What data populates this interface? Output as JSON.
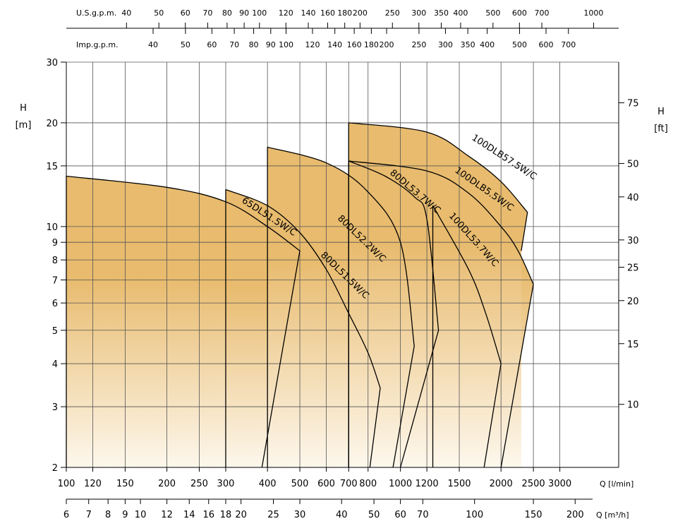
{
  "chart_data": {
    "type": "line",
    "title": "",
    "xlabel": "Q [l/min]",
    "xlabel_m3h": "Q [m³/h]",
    "ylabel_left": "H",
    "ylabel_left_unit": "[m]",
    "ylabel_right": "H",
    "ylabel_right_unit": "[ft]",
    "x_scale": "log",
    "y_scale": "log",
    "xlim_lpm": [
      100,
      4500
    ],
    "ylim_m": [
      2,
      30
    ],
    "x_ticks_lpm": [
      100,
      120,
      150,
      200,
      250,
      300,
      400,
      500,
      600,
      700,
      800,
      1000,
      1200,
      1500,
      2000,
      2500,
      3000
    ],
    "x_ticks_lpm_labels": [
      "100",
      "120",
      "150",
      "200",
      "250",
      "300",
      "400",
      "500",
      "600",
      "700",
      "800",
      "1000",
      "1200",
      "1500",
      "2000",
      "2500",
      "3000"
    ],
    "x_ticks_m3h": [
      6,
      7,
      8,
      9,
      10,
      12,
      14,
      16,
      18,
      20,
      25,
      30,
      40,
      50,
      60,
      70,
      100,
      150,
      200
    ],
    "x_ticks_m3h_labels": [
      "6",
      "7",
      "8",
      "9",
      "10",
      "12",
      "14",
      "16",
      "18",
      "20",
      "25",
      "30",
      "40",
      "50",
      "60",
      "70",
      "100",
      "150",
      "200"
    ],
    "us_gpm_label": "U.S.g.p.m.",
    "us_gpm_ticks": [
      40,
      50,
      60,
      70,
      80,
      90,
      100,
      120,
      140,
      160,
      180,
      200,
      250,
      300,
      350,
      400,
      500,
      600,
      700,
      1000
    ],
    "us_gpm_tick_labels": [
      "40",
      "50",
      "60",
      "70",
      "80",
      "90",
      "100",
      "120",
      "140",
      "160",
      "180",
      "200",
      "250",
      "300",
      "350",
      "400",
      "500",
      "600",
      "700",
      "1000"
    ],
    "imp_gpm_label": "Imp.g.p.m.",
    "imp_gpm_ticks": [
      40,
      50,
      60,
      70,
      80,
      90,
      100,
      120,
      140,
      160,
      180,
      200,
      250,
      300,
      350,
      400,
      500,
      600,
      700
    ],
    "imp_gpm_tick_labels": [
      "40",
      "50",
      "60",
      "70",
      "80",
      "90",
      "100",
      "120",
      "140",
      "160",
      "180",
      "200",
      "250",
      "300",
      "350",
      "400",
      "500",
      "600",
      "700"
    ],
    "y_ticks_m": [
      2,
      3,
      4,
      5,
      6,
      7,
      8,
      9,
      10,
      15,
      20,
      30
    ],
    "y_ticks_m_labels": [
      "2",
      "3",
      "4",
      "5",
      "6",
      "7",
      "8",
      "9",
      "10",
      "15",
      "20",
      "30"
    ],
    "y_ticks_ft": [
      10,
      15,
      20,
      25,
      30,
      40,
      50,
      75
    ],
    "y_ticks_ft_labels": [
      "10",
      "15",
      "20",
      "25",
      "30",
      "40",
      "50",
      "75"
    ],
    "grid": true,
    "fill_gradient": [
      "#e8bb6e",
      "#fdf7ec"
    ],
    "series": [
      {
        "name": "65DL51.5W/C",
        "points": [
          [
            100,
            14.0
          ],
          [
            200,
            13.0
          ],
          [
            300,
            11.8
          ],
          [
            400,
            10.0
          ],
          [
            500,
            8.5
          ]
        ],
        "end_to": [
          385,
          2
        ]
      },
      {
        "name": "80DL51.5W/C",
        "points": [
          [
            300,
            12.8
          ],
          [
            400,
            11.5
          ],
          [
            500,
            9.6
          ],
          [
            600,
            7.5
          ],
          [
            700,
            5.6
          ],
          [
            800,
            4.3
          ],
          [
            870,
            3.4
          ]
        ],
        "end_to": [
          810,
          2
        ]
      },
      {
        "name": "80DL52.2W/C",
        "points": [
          [
            400,
            17.0
          ],
          [
            600,
            15.3
          ],
          [
            800,
            12.6
          ],
          [
            1000,
            9.0
          ],
          [
            1100,
            4.5
          ]
        ],
        "end_to": [
          950,
          2
        ]
      },
      {
        "name": "80DL53.7W/C",
        "points": [
          [
            700,
            15.5
          ],
          [
            900,
            14.0
          ],
          [
            1100,
            12.2
          ],
          [
            1200,
            10.5
          ],
          [
            1300,
            5.0
          ]
        ],
        "end_to": [
          1000,
          2
        ]
      },
      {
        "name": "100DL53.7W/C",
        "points": [
          [
            1250,
            11.5
          ],
          [
            1600,
            7.5
          ],
          [
            1800,
            5.6
          ],
          [
            2000,
            4.0
          ]
        ],
        "end_to": [
          1780,
          2
        ]
      },
      {
        "name": "100DLB5.5W/C",
        "points": [
          [
            700,
            15.5
          ],
          [
            1200,
            14.5
          ],
          [
            1600,
            12.5
          ],
          [
            2000,
            10.0
          ],
          [
            2250,
            8.5
          ],
          [
            2500,
            6.8
          ]
        ],
        "end_to": [
          2000,
          2
        ]
      },
      {
        "name": "100DLB57.5W/C",
        "points": [
          [
            700,
            20.0
          ],
          [
            1200,
            18.8
          ],
          [
            1600,
            16.0
          ],
          [
            2000,
            13.5
          ],
          [
            2400,
            11.0
          ]
        ],
        "end_to": [
          2300,
          8.5
        ]
      }
    ]
  }
}
